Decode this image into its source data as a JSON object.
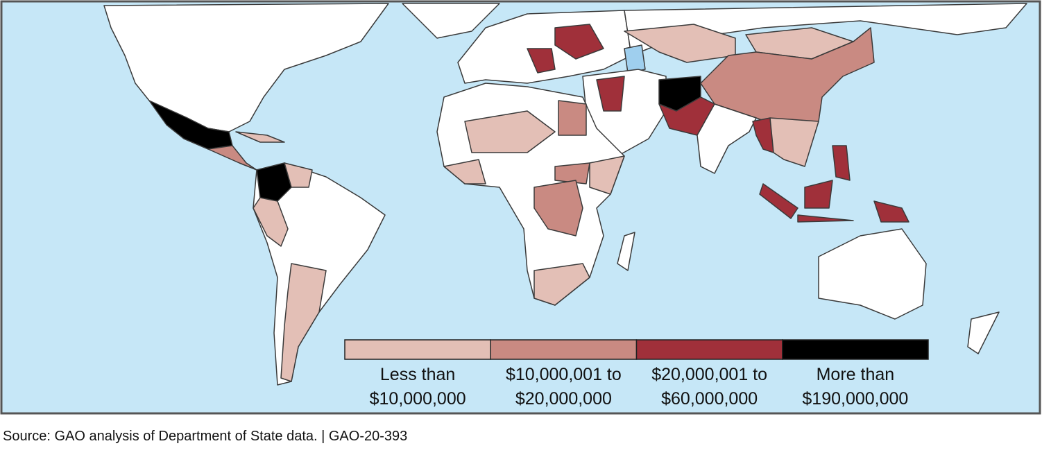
{
  "legend": {
    "items": [
      {
        "label": [
          "Less than",
          "$10,000,000"
        ],
        "color": "#e3bfb6"
      },
      {
        "label": [
          "$10,000,001 to",
          "$20,000,000"
        ],
        "color": "#c98a82"
      },
      {
        "label": [
          "$20,000,001 to",
          "$60,000,000"
        ],
        "color": "#a0303a"
      },
      {
        "label": [
          "More than",
          "$190,000,000"
        ],
        "color": "#000000"
      }
    ]
  },
  "source": "Source: GAO analysis of Department of State data.   |  GAO-20-393"
}
